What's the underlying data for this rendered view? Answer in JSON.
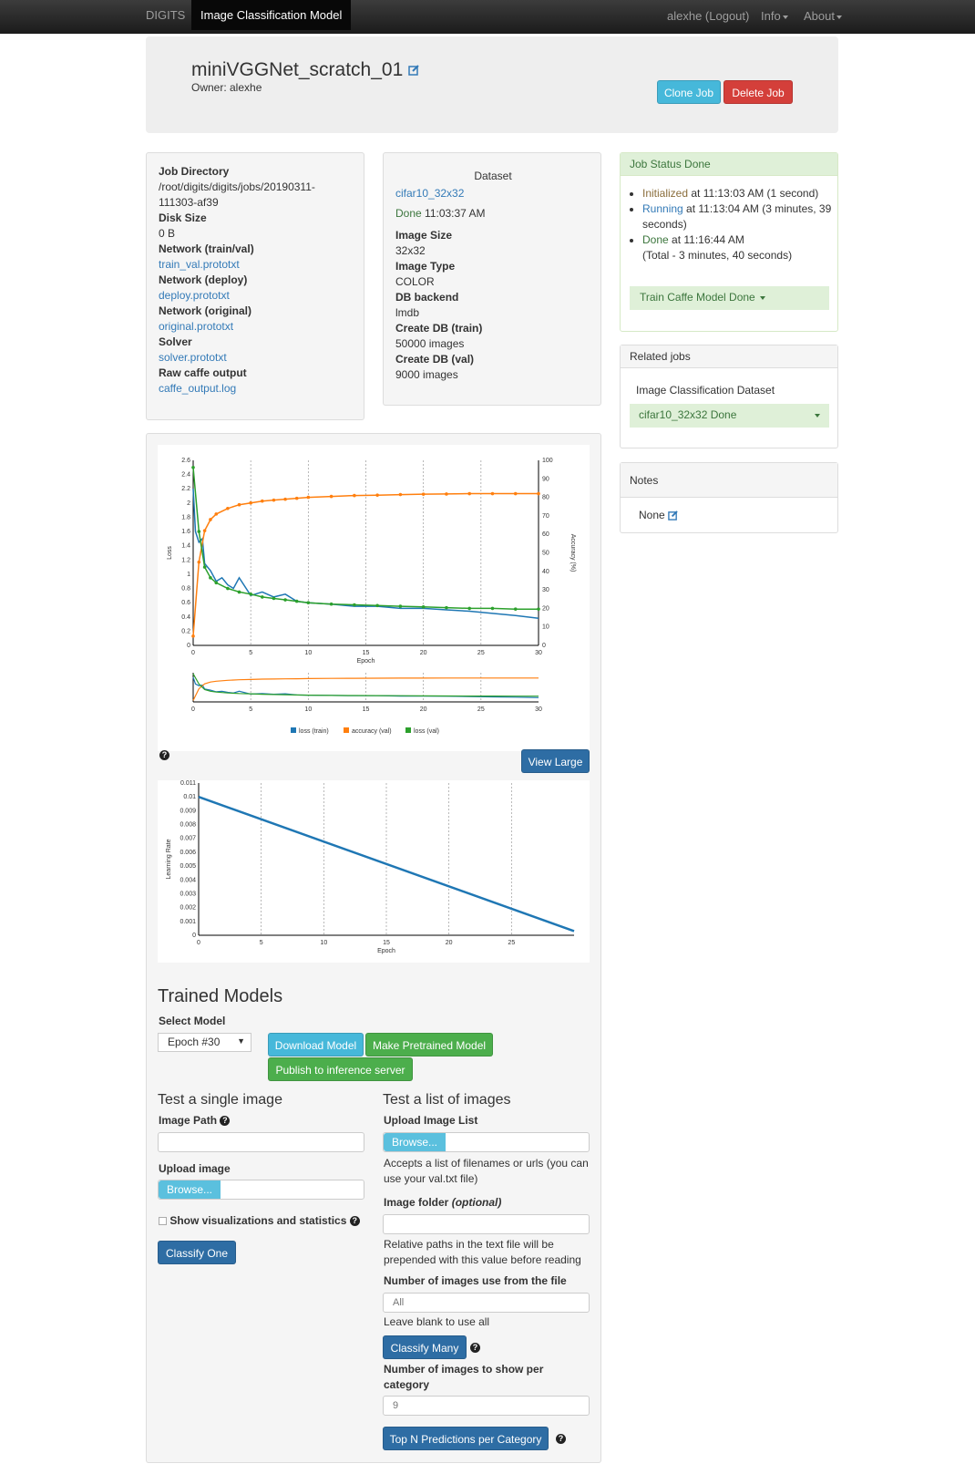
{
  "nav": {
    "brand": "DIGITS",
    "active_tab": "Image Classification Model",
    "user": "alexhe (Logout)",
    "info": "Info",
    "about": "About"
  },
  "header": {
    "title": "miniVGGNet_scratch_01",
    "owner": "Owner: alexhe",
    "clone_btn": "Clone Job",
    "delete_btn": "Delete Job"
  },
  "job_info": {
    "job_dir_label": "Job Directory",
    "job_dir": "/root/digits/digits/jobs/20190311-111303-af39",
    "disk_size_label": "Disk Size",
    "disk_size": "0 B",
    "net_trainval_label": "Network (train/val)",
    "net_trainval": "train_val.prototxt",
    "net_deploy_label": "Network (deploy)",
    "net_deploy": "deploy.prototxt",
    "net_original_label": "Network (original)",
    "net_original": "original.prototxt",
    "solver_label": "Solver",
    "solver": "solver.prototxt",
    "raw_label": "Raw caffe output",
    "raw": "caffe_output.log"
  },
  "dataset": {
    "heading": "Dataset",
    "name": "cifar10_32x32",
    "status": "Done",
    "status_time": "11:03:37 AM",
    "image_size_label": "Image Size",
    "image_size": "32x32",
    "image_type_label": "Image Type",
    "image_type": "COLOR",
    "db_backend_label": "DB backend",
    "db_backend": "lmdb",
    "create_train_label": "Create DB (train)",
    "create_train": "50000 images",
    "create_val_label": "Create DB (val)",
    "create_val": "9000 images"
  },
  "job_status": {
    "heading": "Job Status Done",
    "items": [
      {
        "state": "Initialized",
        "text": "at 11:13:03 AM (1",
        "text2": "second)"
      },
      {
        "state": "Running",
        "text": "at 11:13:04 AM (3 minutes,",
        "text2": "39 seconds)"
      },
      {
        "state": "Done",
        "text": "at 11:16:44 AM",
        "text2": "(Total - 3 minutes, 40 seconds)"
      }
    ],
    "train_btn": "Train Caffe Model Done"
  },
  "related": {
    "heading": "Related jobs",
    "label": "Image Classification Dataset",
    "item": "cifar10_32x32 Done"
  },
  "notes": {
    "heading": "Notes",
    "value": "None"
  },
  "charts": {
    "view_large": "View Large",
    "loss_ylabel": "Loss",
    "acc_ylabel": "Accuracy (%)",
    "epoch_label": "Epoch",
    "lr_ylabel": "Learning Rate",
    "legend": [
      "loss (train)",
      "accuracy (val)",
      "loss (val)"
    ]
  },
  "colors": {
    "train_loss": "#1f77b4",
    "val_acc": "#ff7f0e",
    "val_loss": "#2ca02c"
  },
  "chart_data": [
    {
      "type": "line",
      "title": "",
      "xlabel": "Epoch",
      "ylabel": "Loss",
      "ylabel_right": "Accuracy (%)",
      "xlim": [
        0,
        30
      ],
      "ylim": [
        0,
        2.6
      ],
      "ylim_right": [
        0,
        100
      ],
      "x_ticks": [
        0,
        5,
        10,
        15,
        20,
        25,
        30
      ],
      "y_ticks": [
        0,
        0.2,
        0.4,
        0.6,
        0.8,
        1,
        1.2,
        1.4,
        1.6,
        1.8,
        2,
        2.2,
        2.4,
        2.6
      ],
      "y_ticks_right": [
        0,
        10,
        20,
        30,
        40,
        50,
        60,
        70,
        80,
        90,
        100
      ],
      "series": [
        {
          "name": "loss (train)",
          "x": [
            0,
            0.2,
            0.5,
            0.8,
            1,
            1.5,
            2,
            2.5,
            3,
            3.5,
            4,
            5,
            6,
            7,
            8,
            9,
            10,
            12,
            14,
            16,
            18,
            20,
            22,
            24,
            26,
            28,
            30
          ],
          "values": [
            2.2,
            1.6,
            1.45,
            1.5,
            1.15,
            1.05,
            0.9,
            0.95,
            0.85,
            0.8,
            0.95,
            0.7,
            0.75,
            0.68,
            0.72,
            0.62,
            0.6,
            0.58,
            0.55,
            0.55,
            0.52,
            0.52,
            0.5,
            0.48,
            0.45,
            0.42,
            0.38
          ]
        },
        {
          "name": "accuracy (val)",
          "x": [
            0,
            0.5,
            1,
            1.5,
            2,
            3,
            4,
            5,
            6,
            7,
            8,
            9,
            10,
            12,
            14,
            16,
            18,
            20,
            22,
            24,
            26,
            28,
            30
          ],
          "values": [
            5,
            45,
            62,
            68,
            71,
            74,
            76,
            77,
            78,
            78.5,
            79,
            79.5,
            80,
            80.5,
            81,
            81.2,
            81.5,
            81.7,
            81.8,
            82,
            82,
            82,
            82
          ]
        },
        {
          "name": "loss (val)",
          "x": [
            0,
            0.5,
            1,
            1.5,
            2,
            3,
            4,
            5,
            6,
            7,
            8,
            9,
            10,
            12,
            14,
            16,
            18,
            20,
            22,
            24,
            26,
            28,
            30
          ],
          "values": [
            2.5,
            1.6,
            1.1,
            0.95,
            0.88,
            0.8,
            0.75,
            0.72,
            0.68,
            0.66,
            0.64,
            0.62,
            0.6,
            0.58,
            0.57,
            0.56,
            0.55,
            0.54,
            0.53,
            0.52,
            0.52,
            0.51,
            0.51
          ]
        }
      ]
    },
    {
      "type": "line",
      "title": "",
      "xlabel": "Epoch",
      "ylabel": "Learning Rate",
      "xlim": [
        0,
        30
      ],
      "ylim": [
        0,
        0.011
      ],
      "x_ticks": [
        0,
        5,
        10,
        15,
        20,
        25
      ],
      "y_ticks": [
        0,
        0.001,
        0.002,
        0.003,
        0.004,
        0.005,
        0.006,
        0.007,
        0.008,
        0.009,
        0.01,
        0.011
      ],
      "series": [
        {
          "name": "",
          "x": [
            0,
            30
          ],
          "values": [
            0.01,
            0.0003
          ]
        }
      ]
    }
  ],
  "trained_models": {
    "heading": "Trained Models",
    "select_label": "Select Model",
    "selected": "Epoch #30",
    "download_btn": "Download Model",
    "pretrained_btn": "Make Pretrained Model",
    "publish_btn": "Publish to inference server"
  },
  "single": {
    "heading": "Test a single image",
    "path_label": "Image Path",
    "upload_label": "Upload image",
    "browse": "Browse...",
    "show_vis": "Show visualizations and statistics",
    "classify_btn": "Classify One"
  },
  "list": {
    "heading": "Test a list of images",
    "upload_label": "Upload Image List",
    "browse": "Browse...",
    "accepts_help": "Accepts a list of filenames or urls (you can use your val.txt file)",
    "folder_label": "Image folder",
    "folder_optional": "(optional)",
    "folder_help": "Relative paths in the text file will be prepended with this value before reading",
    "num_label": "Number of images use from the file",
    "num_placeholder": "All",
    "num_help": "Leave blank to use all",
    "classify_many_btn": "Classify Many",
    "per_cat_label": "Number of images to show per category",
    "per_cat_placeholder": "9",
    "topn_btn": "Top N Predictions per Category"
  }
}
